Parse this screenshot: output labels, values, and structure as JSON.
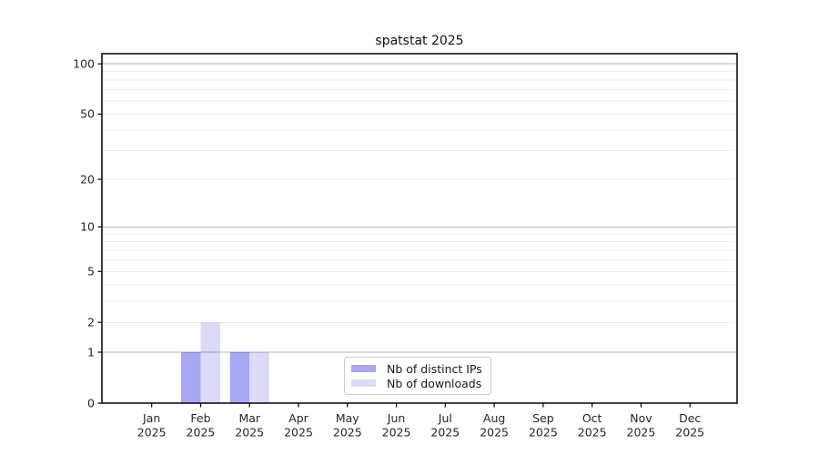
{
  "chart_data": {
    "type": "bar",
    "title": "spatstat 2025",
    "xlabel": "",
    "ylabel": "",
    "scale": "log10(value+1)",
    "ylim": [
      0,
      115
    ],
    "y_ticks": [
      0,
      1,
      2,
      5,
      10,
      20,
      50,
      100
    ],
    "y_major_gridlines": [
      1,
      10,
      100
    ],
    "y_minor_gridlines": [
      2,
      3,
      4,
      5,
      6,
      7,
      8,
      9,
      20,
      30,
      40,
      50,
      60,
      70,
      80,
      90
    ],
    "grid": "on",
    "x_ticks": [
      {
        "month": "Jan",
        "year": "2025"
      },
      {
        "month": "Feb",
        "year": "2025"
      },
      {
        "month": "Mar",
        "year": "2025"
      },
      {
        "month": "Apr",
        "year": "2025"
      },
      {
        "month": "May",
        "year": "2025"
      },
      {
        "month": "Jun",
        "year": "2025"
      },
      {
        "month": "Jul",
        "year": "2025"
      },
      {
        "month": "Aug",
        "year": "2025"
      },
      {
        "month": "Sep",
        "year": "2025"
      },
      {
        "month": "Oct",
        "year": "2025"
      },
      {
        "month": "Nov",
        "year": "2025"
      },
      {
        "month": "Dec",
        "year": "2025"
      }
    ],
    "series": [
      {
        "name": "Nb of distinct IPs",
        "color": "#a7a7f3",
        "values": [
          0,
          1,
          1,
          0,
          0,
          0,
          0,
          0,
          0,
          0,
          0,
          0
        ]
      },
      {
        "name": "Nb of downloads",
        "color": "#dbdbf8",
        "values": [
          0,
          2,
          1,
          0,
          0,
          0,
          0,
          0,
          0,
          0,
          0,
          0
        ]
      }
    ],
    "legend": {
      "position": "lower center"
    },
    "colors": {
      "axis": "#000000",
      "grid_major": "#b0b0b0",
      "grid_minor": "#ececec",
      "tick_label": "#262626"
    }
  }
}
